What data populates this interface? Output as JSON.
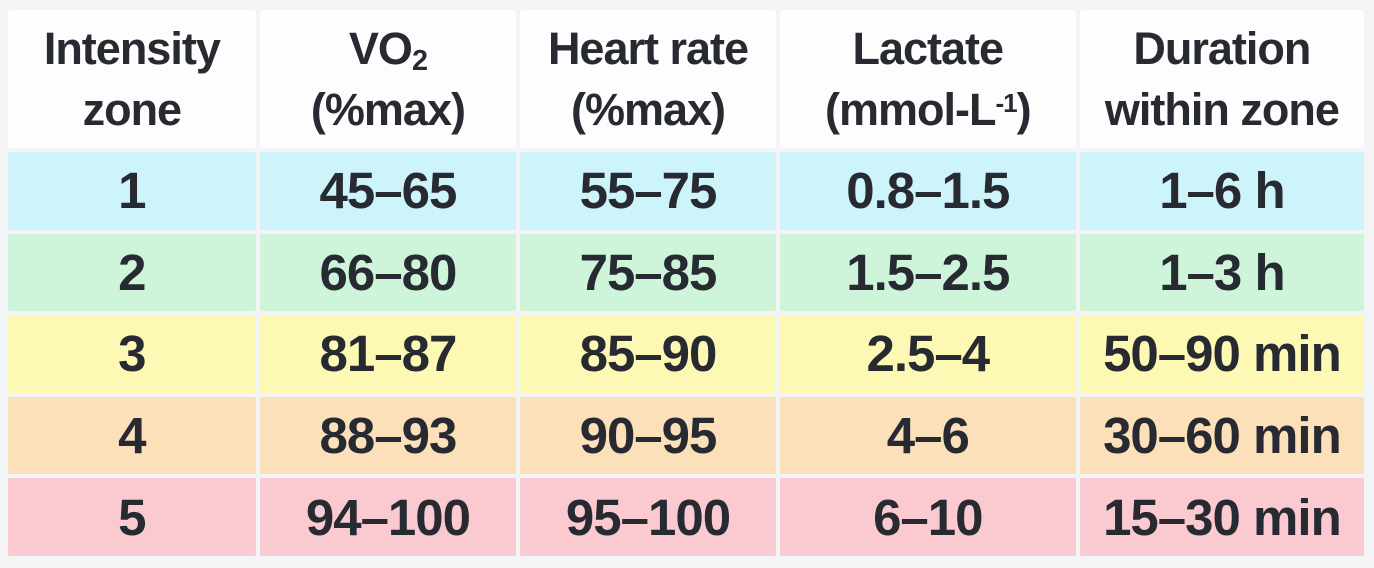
{
  "colors": {
    "page_background": "#f3f4f6",
    "header_background": "#fdfdfe",
    "text": "#272b31"
  },
  "header": {
    "cells": [
      {
        "line1": "Intensity",
        "line2": "zone"
      },
      {
        "line1_main": "VO",
        "line1_sub": "2",
        "line2": "(%max)"
      },
      {
        "line1": "Heart rate",
        "line2": "(%max)"
      },
      {
        "line1": "Lactate",
        "line2_pre": "(mmol-L",
        "line2_sup": "-1",
        "line2_post": ")"
      },
      {
        "line1": "Duration",
        "line2": "within zone"
      }
    ]
  },
  "rows": [
    {
      "zone": "1",
      "vo2": "45–65",
      "heart_rate": "55–75",
      "lactate": "0.8–1.5",
      "duration": "1–6 h",
      "color": "#cdf3fb"
    },
    {
      "zone": "2",
      "vo2": "66–80",
      "heart_rate": "75–85",
      "lactate": "1.5–2.5",
      "duration": "1–3 h",
      "color": "#cef5da"
    },
    {
      "zone": "3",
      "vo2": "81–87",
      "heart_rate": "85–90",
      "lactate": "2.5–4",
      "duration": "50–90 min",
      "color": "#fdf9b4"
    },
    {
      "zone": "4",
      "vo2": "88–93",
      "heart_rate": "90–95",
      "lactate": "4–6",
      "duration": "30–60 min",
      "color": "#fbe0ba"
    },
    {
      "zone": "5",
      "vo2": "94–100",
      "heart_rate": "95–100",
      "lactate": "6–10",
      "duration": "15–30 min",
      "color": "#fbcad1"
    }
  ],
  "chart_data": {
    "type": "table",
    "columns": [
      "Intensity zone",
      "VO2 (%max)",
      "Heart rate (%max)",
      "Lactate (mmol-L-1)",
      "Duration within zone"
    ],
    "rows": [
      [
        "1",
        "45–65",
        "55–75",
        "0.8–1.5",
        "1–6 h"
      ],
      [
        "2",
        "66–80",
        "75–85",
        "1.5–2.5",
        "1–3 h"
      ],
      [
        "3",
        "81–87",
        "85–90",
        "2.5–4",
        "50–90 min"
      ],
      [
        "4",
        "88–93",
        "90–95",
        "4–6",
        "30–60 min"
      ],
      [
        "5",
        "94–100",
        "95–100",
        "6–10",
        "15–30 min"
      ]
    ],
    "row_colors": [
      "#cdf3fb",
      "#cef5da",
      "#fdf9b4",
      "#fbe0ba",
      "#fbcad1"
    ]
  }
}
